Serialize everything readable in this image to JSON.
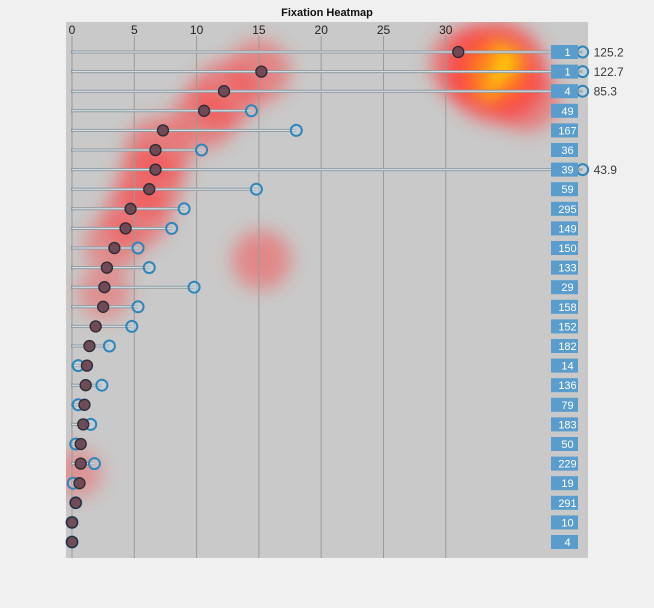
{
  "chart_data": {
    "type": "heatmap",
    "title": "Fixation Heatmap",
    "xlabel": "",
    "ylabel": "",
    "xlim": [
      0,
      40.5
    ],
    "xticks": [
      0,
      5,
      10,
      15,
      20,
      25,
      30
    ],
    "grid": "vertical",
    "rows": [
      {
        "start": 31.0,
        "end": 125.2,
        "count": 1,
        "label": "125.2"
      },
      {
        "start": 15.2,
        "end": 122.7,
        "count": 1,
        "label": "122.7"
      },
      {
        "start": 12.2,
        "end": 85.3,
        "count": 4,
        "label": "85.3"
      },
      {
        "start": 10.6,
        "end": 14.4,
        "count": 49
      },
      {
        "start": 7.3,
        "end": 18.0,
        "count": 167
      },
      {
        "start": 6.7,
        "end": 10.4,
        "count": 36
      },
      {
        "start": 6.7,
        "end": 43.9,
        "count": 39,
        "label": "43.9"
      },
      {
        "start": 6.2,
        "end": 14.8,
        "count": 59
      },
      {
        "start": 4.7,
        "end": 9.0,
        "count": 295
      },
      {
        "start": 4.3,
        "end": 8.0,
        "count": 149
      },
      {
        "start": 3.4,
        "end": 5.3,
        "count": 150
      },
      {
        "start": 2.8,
        "end": 6.2,
        "count": 133
      },
      {
        "start": 2.6,
        "end": 9.8,
        "count": 29
      },
      {
        "start": 2.5,
        "end": 5.3,
        "count": 158
      },
      {
        "start": 1.9,
        "end": 4.8,
        "count": 152
      },
      {
        "start": 1.4,
        "end": 3.0,
        "count": 182
      },
      {
        "start": 1.2,
        "end": 0.5,
        "count": 14
      },
      {
        "start": 1.1,
        "end": 2.4,
        "count": 136
      },
      {
        "start": 1.0,
        "end": 0.5,
        "count": 79
      },
      {
        "start": 0.9,
        "end": 1.5,
        "count": 183
      },
      {
        "start": 0.7,
        "end": 0.3,
        "count": 50
      },
      {
        "start": 0.7,
        "end": 1.8,
        "count": 229
      },
      {
        "start": 0.6,
        "end": 0.1,
        "count": 19
      },
      {
        "start": 0.3,
        "end": 0.3,
        "count": 291
      },
      {
        "start": 0.0,
        "end": 0.0,
        "count": 10
      },
      {
        "start": 0.0,
        "end": 0.0,
        "count": 4
      }
    ],
    "hotspots": [
      {
        "x": 34.0,
        "row": 1.0,
        "intensity": 1.0
      },
      {
        "x": 31.5,
        "row": 0.6,
        "intensity": 0.55
      },
      {
        "x": 36.5,
        "row": 2.4,
        "intensity": 0.5
      },
      {
        "x": 15.0,
        "row": 1.0,
        "intensity": 0.45
      },
      {
        "x": 12.2,
        "row": 2.2,
        "intensity": 0.5
      },
      {
        "x": 10.5,
        "row": 3.4,
        "intensity": 0.45
      },
      {
        "x": 7.0,
        "row": 5.0,
        "intensity": 0.5
      },
      {
        "x": 6.3,
        "row": 6.6,
        "intensity": 0.5
      },
      {
        "x": 5.2,
        "row": 8.3,
        "intensity": 0.5
      },
      {
        "x": 3.2,
        "row": 9.8,
        "intensity": 0.35
      },
      {
        "x": 15.2,
        "row": 10.6,
        "intensity": 0.4
      },
      {
        "x": 2.6,
        "row": 12.3,
        "intensity": 0.3
      },
      {
        "x": 0.4,
        "row": 21.5,
        "intensity": 0.25
      }
    ],
    "colors": {
      "plot_bg": "#c9c9c9",
      "count_badge": "#5a9ccb",
      "start_marker": "#6b4652",
      "end_marker": "#2f86b8",
      "bar": "#8f9aa2",
      "hot": "#ff3a3a",
      "peak": "#fff700"
    }
  }
}
